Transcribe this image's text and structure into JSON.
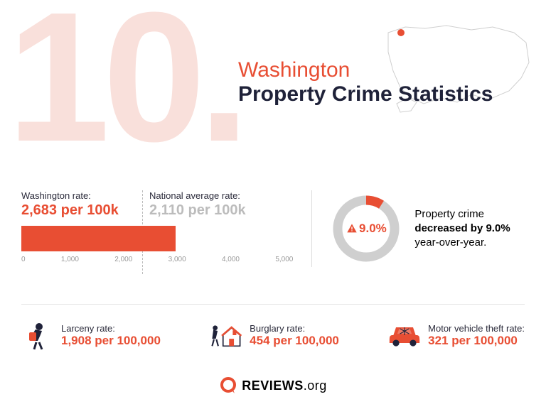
{
  "colors": {
    "accent": "#e84e33",
    "accent_light": "#f9e0db",
    "text_dark": "#1f2239",
    "text_muted": "#bcbcbc",
    "grid": "#e5e5e5",
    "map_stroke": "#cfcfcf",
    "donut_bg": "#cfcfcf"
  },
  "rank": "10.",
  "title": {
    "line1": "Washington",
    "line2": "Property Crime Statistics"
  },
  "bar_chart": {
    "state_label": "Washington rate:",
    "state_value_text": "2,683 per 100k",
    "state_value": 2683,
    "national_label": "National average rate:",
    "national_value_text": "2,110 per 100k",
    "national_value": 2110,
    "xmax": 5000,
    "ticks": [
      "0",
      "1,000",
      "2,000",
      "3,000",
      "4,000",
      "5,000"
    ]
  },
  "donut": {
    "percent_text": "9.0%",
    "percent": 9.0,
    "text_before": "Property crime ",
    "text_bold": "decreased by 9.0%",
    "text_after": " year-over-year."
  },
  "crimes": [
    {
      "label": "Larceny rate:",
      "value": "1,908 per 100,000",
      "icon": "larceny"
    },
    {
      "label": "Burglary rate:",
      "value": "454 per 100,000",
      "icon": "burglary"
    },
    {
      "label": "Motor vehicle theft rate:",
      "value": "321 per 100,000",
      "icon": "car"
    }
  ],
  "logo": {
    "name": "REVIEWS",
    "suffix": ".org"
  }
}
